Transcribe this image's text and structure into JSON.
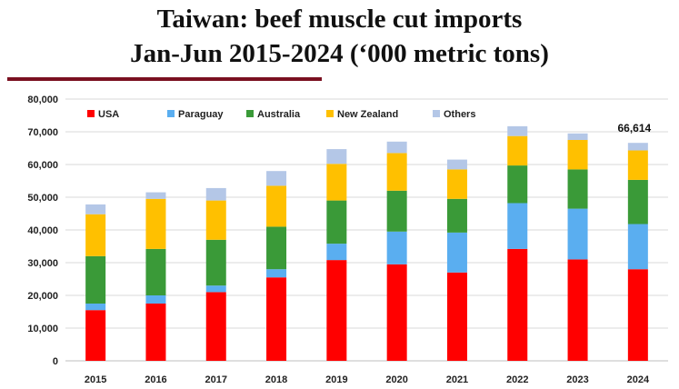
{
  "title_line1": "Taiwan: beef muscle cut imports",
  "title_line2": "Jan-Jun 2015-2024 (‘000 metric tons)",
  "colors": {
    "USA": "#ff0000",
    "Paraguay": "#5aaef0",
    "Australia": "#3a9a38",
    "New Zealand": "#ffc000",
    "Others": "#b4c7e7",
    "title_rule": "#7a1020"
  },
  "chart_data": {
    "type": "bar",
    "stacked": true,
    "title": "Taiwan: beef muscle cut imports Jan-Jun 2015-2024 (‘000 metric tons)",
    "xlabel": "",
    "ylabel": "",
    "categories": [
      "2015",
      "2016",
      "2017",
      "2018",
      "2019",
      "2020",
      "2021",
      "2022",
      "2023",
      "2024"
    ],
    "ylim": [
      0,
      80000
    ],
    "yticks": [
      0,
      10000,
      20000,
      30000,
      40000,
      50000,
      60000,
      70000,
      80000
    ],
    "ytick_labels": [
      "0",
      "10,000",
      "20,000",
      "30,000",
      "40,000",
      "50,000",
      "60,000",
      "70,000",
      "80,000"
    ],
    "grid": true,
    "legend_position": "top",
    "series": [
      {
        "name": "USA",
        "values": [
          15500,
          17500,
          21000,
          25500,
          30800,
          29500,
          27000,
          34200,
          31000,
          28000
        ]
      },
      {
        "name": "Paraguay",
        "values": [
          2000,
          2500,
          2000,
          2500,
          5000,
          10000,
          12200,
          14000,
          15500,
          13800
        ]
      },
      {
        "name": "Australia",
        "values": [
          14500,
          14200,
          14000,
          13000,
          13200,
          12500,
          10300,
          11500,
          12000,
          13500
        ]
      },
      {
        "name": "New Zealand",
        "values": [
          12800,
          15300,
          12000,
          12500,
          11200,
          11500,
          9000,
          9000,
          9000,
          9000
        ]
      },
      {
        "name": "Others",
        "values": [
          3000,
          2000,
          3800,
          4500,
          4500,
          3500,
          3000,
          3000,
          2000,
          2314
        ]
      }
    ],
    "annotations": [
      {
        "category": "2024",
        "text": "66,614"
      }
    ]
  }
}
